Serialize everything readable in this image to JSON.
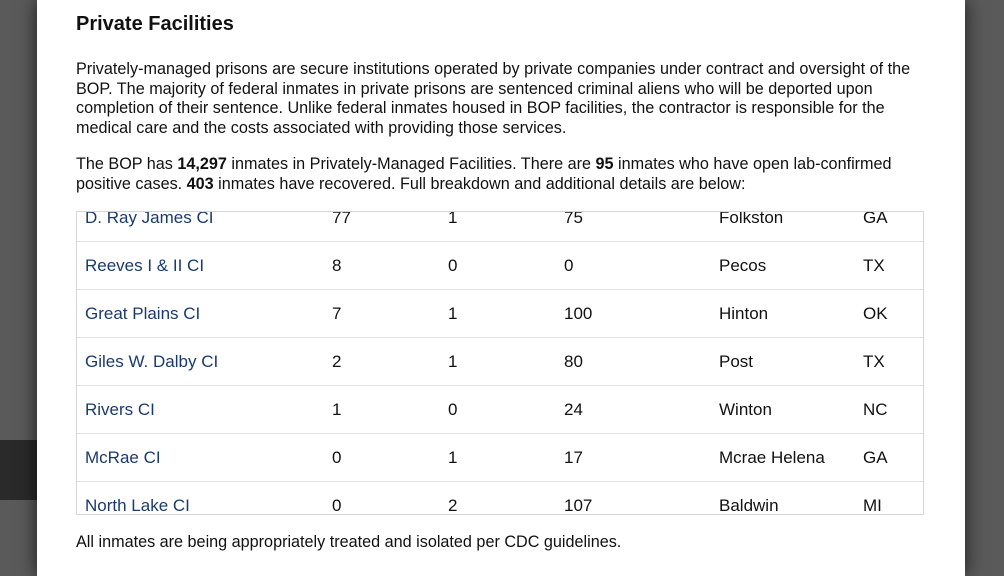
{
  "modal": {
    "title": "Private Facilities",
    "intro": "Privately-managed prisons are secure institutions operated by private companies under contract and oversight of the BOP. The majority of federal inmates in private prisons are sentenced criminal aliens who will be deported upon completion of their sentence. Unlike federal inmates housed in BOP facilities, the contractor is responsible for the medical care and the costs associated with providing those services.",
    "summary": {
      "part1": "The BOP has ",
      "inmates_total": "14,297",
      "part2": " inmates in Privately-Managed Facilities. There are ",
      "open_cases": "95",
      "part3": " inmates who have open lab-confirmed positive cases. ",
      "recovered": "403",
      "part4": " inmates have recovered. Full breakdown and additional details are below:"
    },
    "footer": "All inmates are being appropriately treated and isolated per CDC guidelines."
  },
  "facilities": [
    {
      "name": "D. Ray James CI",
      "c1": "77",
      "c2": "1",
      "c3": "75",
      "city": "Folkston",
      "state": "GA"
    },
    {
      "name": "Reeves I & II CI",
      "c1": "8",
      "c2": "0",
      "c3": "0",
      "city": "Pecos",
      "state": "TX"
    },
    {
      "name": "Great Plains CI",
      "c1": "7",
      "c2": "1",
      "c3": "100",
      "city": "Hinton",
      "state": "OK"
    },
    {
      "name": "Giles W. Dalby CI",
      "c1": "2",
      "c2": "1",
      "c3": "80",
      "city": "Post",
      "state": "TX"
    },
    {
      "name": "Rivers CI",
      "c1": "1",
      "c2": "0",
      "c3": "24",
      "city": "Winton",
      "state": "NC"
    },
    {
      "name": "McRae CI",
      "c1": "0",
      "c2": "1",
      "c3": "17",
      "city": "Mcrae Helena",
      "state": "GA"
    },
    {
      "name": "North Lake CI",
      "c1": "0",
      "c2": "2",
      "c3": "107",
      "city": "Baldwin",
      "state": "MI"
    }
  ]
}
